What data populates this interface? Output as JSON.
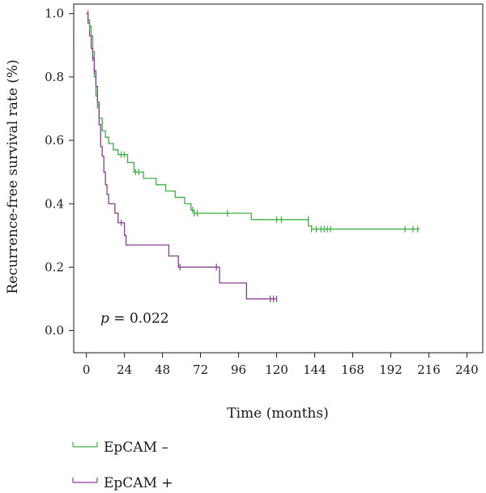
{
  "chart_data": {
    "type": "line",
    "title": "",
    "xlabel": "Time (months)",
    "ylabel": "Recurrence-free survival rate (%)",
    "xlim": [
      -8,
      250
    ],
    "ylim": [
      -0.07,
      1.03
    ],
    "x_ticks": [
      0,
      24,
      48,
      72,
      96,
      120,
      144,
      168,
      192,
      216,
      240
    ],
    "y_ticks": [
      0.0,
      0.2,
      0.4,
      0.6,
      0.8,
      1.0
    ],
    "y_tick_labels": [
      "0.0",
      "0.2",
      "0.4",
      "0.6",
      "0.8",
      "1.0"
    ],
    "grid": false,
    "legend_position": "bottom-left",
    "annotation": {
      "italic": "p",
      "rest": " = 0.022",
      "x": 4,
      "y": 0.05
    },
    "series": [
      {
        "name": "EpCAM –",
        "color": "#3cb043",
        "steps": [
          [
            0,
            1.0
          ],
          [
            1,
            0.98
          ],
          [
            2,
            0.96
          ],
          [
            3,
            0.93
          ],
          [
            4,
            0.88
          ],
          [
            5,
            0.8
          ],
          [
            6,
            0.74
          ],
          [
            7,
            0.71
          ],
          [
            8,
            0.67
          ],
          [
            10,
            0.63
          ],
          [
            12,
            0.61
          ],
          [
            14,
            0.59
          ],
          [
            17,
            0.57
          ],
          [
            20,
            0.555
          ],
          [
            26,
            0.53
          ],
          [
            30,
            0.5
          ],
          [
            36,
            0.48
          ],
          [
            44,
            0.46
          ],
          [
            50,
            0.44
          ],
          [
            56,
            0.42
          ],
          [
            62,
            0.4
          ],
          [
            66,
            0.38
          ],
          [
            68,
            0.37
          ],
          [
            104,
            0.35
          ],
          [
            140,
            0.33
          ],
          [
            142,
            0.32
          ],
          [
            210,
            0.32
          ]
        ],
        "censored": [
          [
            2,
            0.96
          ],
          [
            7,
            0.71
          ],
          [
            22,
            0.555
          ],
          [
            24,
            0.555
          ],
          [
            31,
            0.5
          ],
          [
            33,
            0.5
          ],
          [
            67,
            0.38
          ],
          [
            68,
            0.37
          ],
          [
            70,
            0.37
          ],
          [
            89,
            0.37
          ],
          [
            120,
            0.35
          ],
          [
            123,
            0.35
          ],
          [
            140,
            0.35
          ],
          [
            142,
            0.32
          ],
          [
            145,
            0.32
          ],
          [
            148,
            0.32
          ],
          [
            150,
            0.32
          ],
          [
            152,
            0.32
          ],
          [
            154,
            0.32
          ],
          [
            201,
            0.32
          ],
          [
            206,
            0.32
          ],
          [
            209,
            0.32
          ]
        ]
      },
      {
        "name": "EpCAM +",
        "color": "#8a3d93",
        "steps": [
          [
            0,
            1.0
          ],
          [
            1,
            0.97
          ],
          [
            2,
            0.93
          ],
          [
            3,
            0.89
          ],
          [
            4,
            0.86
          ],
          [
            5,
            0.82
          ],
          [
            6,
            0.77
          ],
          [
            7,
            0.72
          ],
          [
            8,
            0.65
          ],
          [
            9,
            0.58
          ],
          [
            10,
            0.55
          ],
          [
            11,
            0.5
          ],
          [
            12,
            0.46
          ],
          [
            13,
            0.43
          ],
          [
            14,
            0.4
          ],
          [
            18,
            0.37
          ],
          [
            20,
            0.34
          ],
          [
            24,
            0.3
          ],
          [
            25,
            0.27
          ],
          [
            52,
            0.235
          ],
          [
            58,
            0.2
          ],
          [
            84,
            0.15
          ],
          [
            101,
            0.1
          ],
          [
            120,
            0.1
          ]
        ],
        "censored": [
          [
            1,
            1.0
          ],
          [
            4,
            0.86
          ],
          [
            5,
            0.82
          ],
          [
            22,
            0.34
          ],
          [
            59,
            0.2
          ],
          [
            82,
            0.2
          ],
          [
            116,
            0.1
          ],
          [
            118,
            0.1
          ],
          [
            120,
            0.1
          ]
        ]
      }
    ]
  }
}
